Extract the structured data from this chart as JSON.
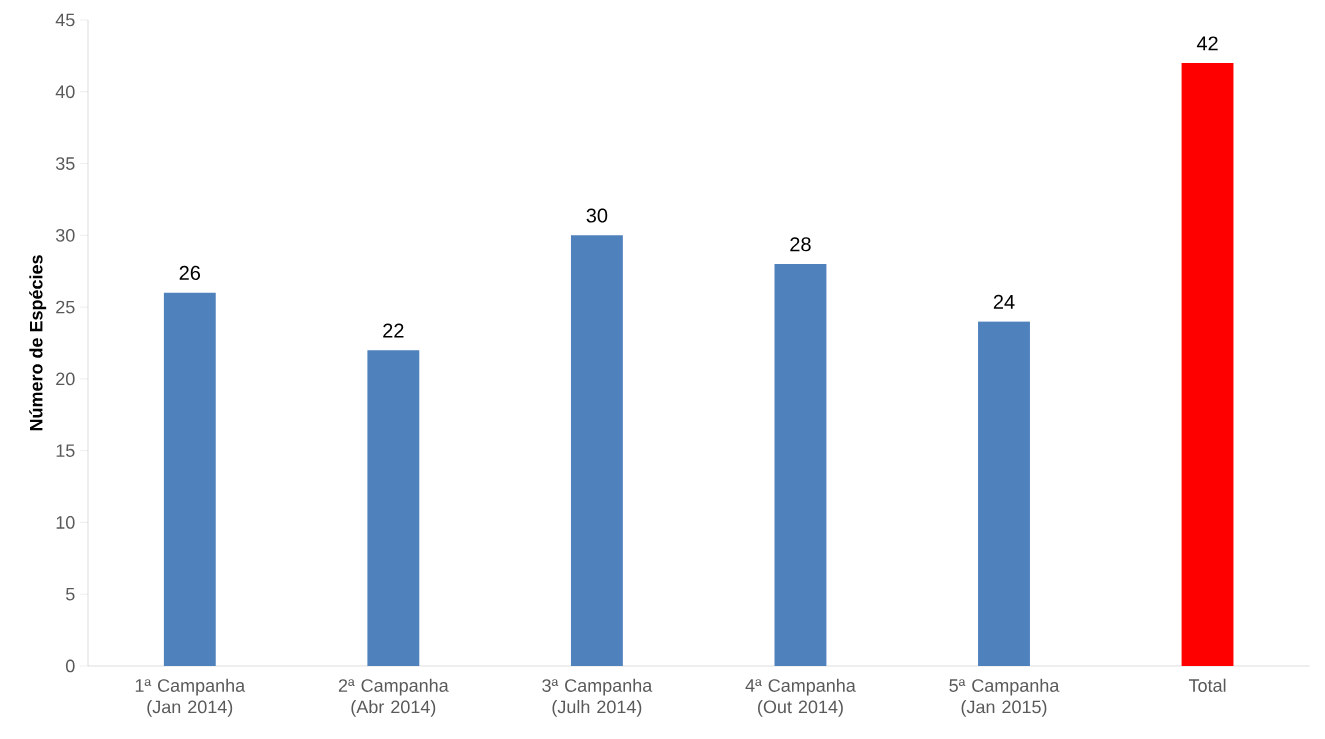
{
  "chart_data": {
    "type": "bar",
    "ylabel": "Número de Espécies",
    "categories": [
      "1ª Campanha (Jan 2014)",
      "2ª Campanha (Abr 2014)",
      "3ª Campanha (Julh 2014)",
      "4ª Campanha (Out 2014)",
      "5ª Campanha (Jan 2015)",
      "Total"
    ],
    "values": [
      26,
      22,
      30,
      28,
      24,
      42
    ],
    "colors": [
      "#4f81bd",
      "#4f81bd",
      "#4f81bd",
      "#4f81bd",
      "#4f81bd",
      "#ff0000"
    ],
    "ylim": [
      0,
      45
    ],
    "yticks": [
      0,
      5,
      10,
      15,
      20,
      25,
      30,
      35,
      40,
      45
    ],
    "data_labels": true
  }
}
